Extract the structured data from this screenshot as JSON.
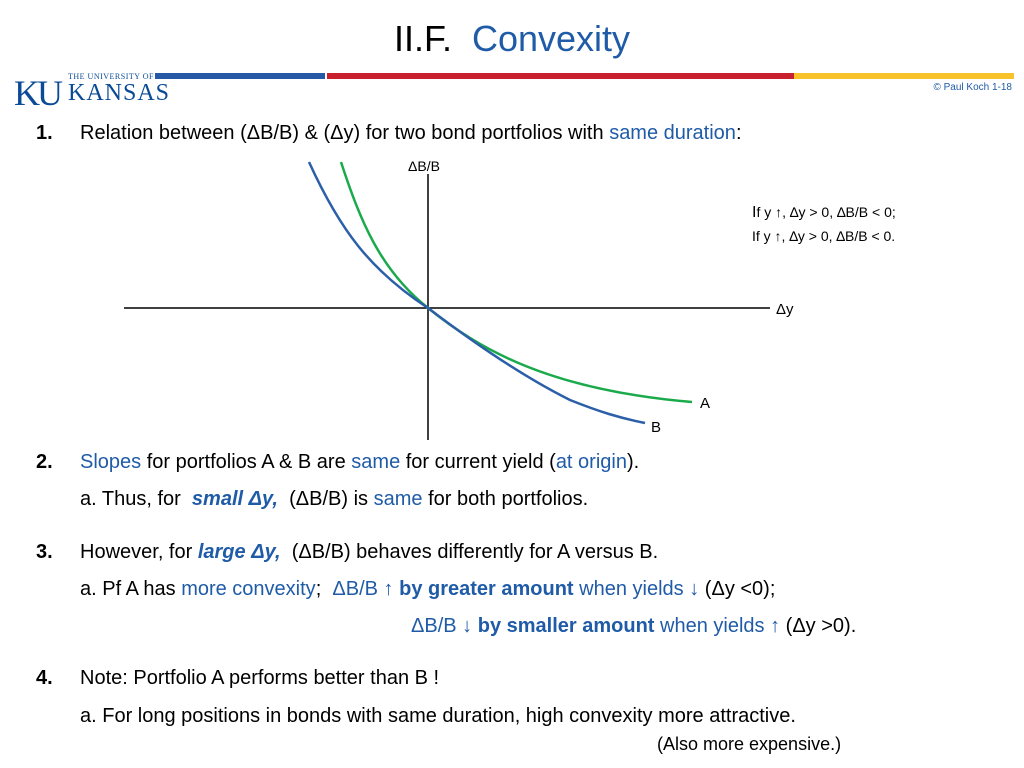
{
  "title": {
    "prefix": "II.F.",
    "main": "Convexity"
  },
  "logo": {
    "ku": "KU",
    "small_line": "THE UNIVERSITY OF",
    "large_line": "KANSAS"
  },
  "copyright": "© Paul Koch 1-18",
  "colors": {
    "blue_text": "#1f5ba7",
    "curve_A": "#1aaa4b",
    "curve_B": "#2b5fa8",
    "bar_blue": "#2559a6",
    "bar_red": "#c8202e",
    "bar_yellow": "#f7c22a"
  },
  "p1": {
    "num": "1.",
    "pre": "Relation between (ΔB/B) & (Δy) for two bond portfolios with",
    "hl": "same duration",
    "post": ":"
  },
  "diagram": {
    "y_axis_label": "ΔB/B",
    "x_axis_label": "Δy",
    "note1_a": "I",
    "note1_b": "f  y ↑,   ∆y > 0,  ∆B/B < 0;",
    "note2": "If  y ↑,   ∆y > 0,  ∆B/B < 0.",
    "label_A": "A",
    "label_B": "B"
  },
  "p2": {
    "num": "2.",
    "hl1": "Slopes",
    "t1": "for  portfolios A & B  are",
    "hl2": "same",
    "t2": "for current yield  (",
    "hl3": "at origin",
    "t3": ")."
  },
  "p2a": {
    "pre": "a.  Thus, for",
    "hl": "small Δy,",
    "mid": "(ΔB/B)  is",
    "hl2": "same",
    "post": "for both portfolios."
  },
  "p3": {
    "num": "3.",
    "pre": "However, for",
    "hl": "large Δy,",
    "post": "(ΔB/B) behaves differently for  A versus B."
  },
  "p3a": {
    "pre": "a.  Pf A has",
    "hl": "more convexity",
    "semi": ";",
    "db": "ΔB/B",
    "arrow1": "↑",
    "by": "by greater  amount",
    "when": "when yields",
    "arrow2": "↓",
    "tail": "(Δy <0);"
  },
  "p3b": {
    "db": "ΔB/B",
    "arrow1": "↓",
    "by": "by smaller  amount",
    "when": "when yields",
    "arrow2": "↑",
    "tail": "(Δy >0)."
  },
  "p4": {
    "num": "4.",
    "text": "Note:  Portfolio A  performs better than  B !"
  },
  "p4a": {
    "text": "a.  For long positions in bonds with same duration, high convexity more attractive."
  },
  "p4b": {
    "text": "(Also more expensive.)"
  }
}
